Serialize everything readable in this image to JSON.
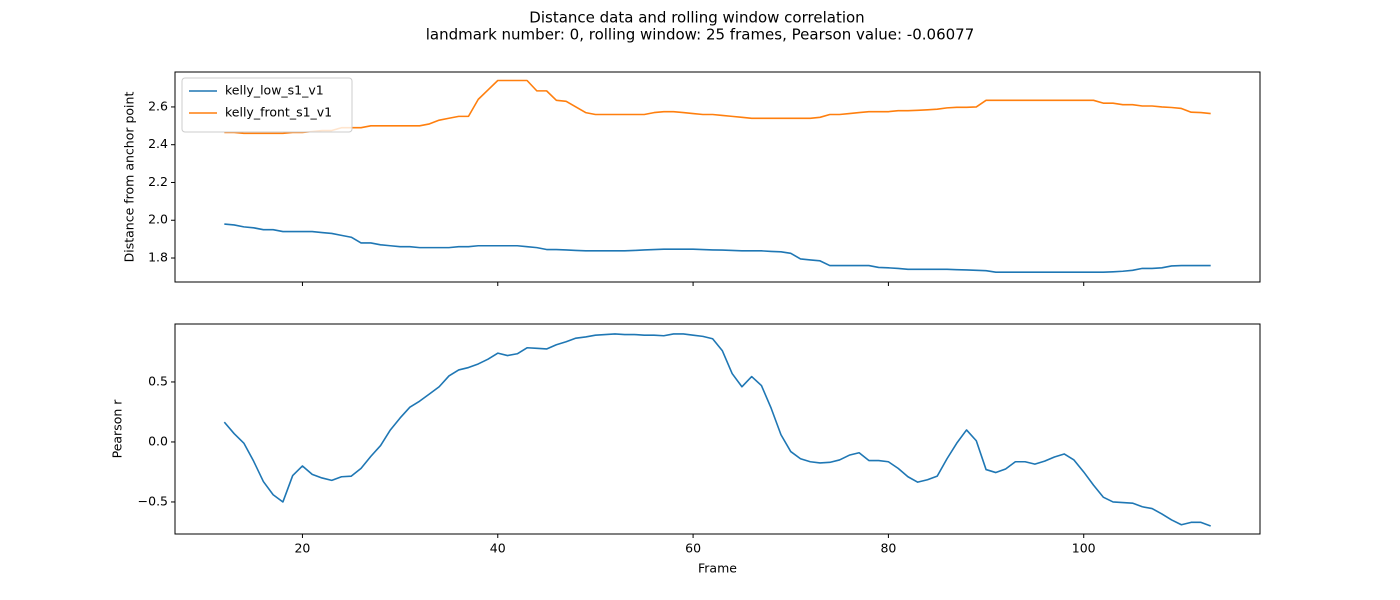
{
  "title": "Distance data and rolling window correlation",
  "subtitle": "landmark number: 0, rolling window: 25 frames, Pearson value: -0.06077",
  "chart_data": [
    {
      "type": "line",
      "ylabel": "Distance from anchor point",
      "xtick_labels": false,
      "legend": "upper left",
      "grid": false,
      "xlim": [
        6.95,
        118.05
      ],
      "xticks": [
        20,
        40,
        60,
        80,
        100
      ],
      "ylim": [
        1.673,
        2.785
      ],
      "yticks": [
        1.8,
        {
          "value": 2,
          "label": "2.0"
        },
        2.2,
        2.4,
        2.6
      ],
      "x": [
        12,
        13,
        14,
        15,
        16,
        17,
        18,
        19,
        20,
        21,
        22,
        23,
        24,
        25,
        26,
        27,
        28,
        29,
        30,
        31,
        32,
        33,
        34,
        35,
        36,
        37,
        38,
        39,
        40,
        41,
        42,
        43,
        44,
        45,
        46,
        47,
        48,
        49,
        50,
        51,
        52,
        53,
        54,
        55,
        56,
        57,
        58,
        59,
        60,
        61,
        62,
        63,
        64,
        65,
        66,
        67,
        68,
        69,
        70,
        71,
        72,
        73,
        74,
        75,
        76,
        77,
        78,
        79,
        80,
        81,
        82,
        83,
        84,
        85,
        86,
        87,
        88,
        89,
        90,
        91,
        92,
        93,
        94,
        95,
        96,
        97,
        98,
        99,
        100,
        101,
        102,
        103,
        104,
        105,
        106,
        107,
        108,
        109,
        110,
        111,
        112,
        113
      ],
      "series": [
        {
          "name": "kelly_low_s1_v1",
          "color": "#1f77b4",
          "values": [
            1.98,
            1.975,
            1.965,
            1.96,
            1.95,
            1.95,
            1.94,
            1.94,
            1.94,
            1.94,
            1.935,
            1.93,
            1.92,
            1.91,
            1.88,
            1.88,
            1.87,
            1.865,
            1.86,
            1.86,
            1.855,
            1.855,
            1.855,
            1.855,
            1.86,
            1.86,
            1.865,
            1.865,
            1.865,
            1.865,
            1.865,
            1.86,
            1.855,
            1.845,
            1.845,
            1.843,
            1.84,
            1.838,
            1.838,
            1.838,
            1.838,
            1.838,
            1.84,
            1.843,
            1.845,
            1.847,
            1.847,
            1.847,
            1.847,
            1.845,
            1.843,
            1.842,
            1.84,
            1.838,
            1.838,
            1.838,
            1.835,
            1.833,
            1.825,
            1.795,
            1.79,
            1.785,
            1.76,
            1.76,
            1.76,
            1.76,
            1.76,
            1.75,
            1.748,
            1.745,
            1.74,
            1.74,
            1.74,
            1.74,
            1.74,
            1.738,
            1.737,
            1.735,
            1.733,
            1.725,
            1.725,
            1.725,
            1.725,
            1.725,
            1.725,
            1.725,
            1.725,
            1.725,
            1.725,
            1.725,
            1.725,
            1.727,
            1.73,
            1.735,
            1.745,
            1.745,
            1.748,
            1.758,
            1.76,
            1.76,
            1.76,
            1.76
          ]
        },
        {
          "name": "kelly_front_s1_v1",
          "color": "#ff7f0e",
          "values": [
            2.465,
            2.465,
            2.46,
            2.46,
            2.46,
            2.46,
            2.46,
            2.465,
            2.465,
            2.47,
            2.475,
            2.475,
            2.49,
            2.49,
            2.49,
            2.5,
            2.5,
            2.5,
            2.5,
            2.5,
            2.5,
            2.51,
            2.53,
            2.54,
            2.55,
            2.55,
            2.64,
            2.69,
            2.74,
            2.74,
            2.74,
            2.74,
            2.685,
            2.685,
            2.635,
            2.63,
            2.6,
            2.57,
            2.56,
            2.56,
            2.56,
            2.56,
            2.56,
            2.56,
            2.57,
            2.575,
            2.575,
            2.57,
            2.565,
            2.56,
            2.56,
            2.555,
            2.55,
            2.545,
            2.54,
            2.54,
            2.54,
            2.54,
            2.54,
            2.54,
            2.54,
            2.545,
            2.56,
            2.56,
            2.565,
            2.57,
            2.575,
            2.575,
            2.575,
            2.58,
            2.58,
            2.582,
            2.585,
            2.588,
            2.595,
            2.598,
            2.598,
            2.6,
            2.635,
            2.635,
            2.635,
            2.635,
            2.635,
            2.635,
            2.635,
            2.635,
            2.635,
            2.635,
            2.635,
            2.635,
            2.62,
            2.62,
            2.612,
            2.612,
            2.605,
            2.605,
            2.6,
            2.597,
            2.592,
            2.572,
            2.57,
            2.565
          ]
        }
      ]
    },
    {
      "type": "line",
      "ylabel": "Pearson r",
      "xlabel": "Frame",
      "xtick_labels": true,
      "grid": false,
      "xlim": [
        6.95,
        118.05
      ],
      "xticks": [
        20,
        40,
        60,
        80,
        100
      ],
      "ylim": [
        -0.767,
        0.983
      ],
      "yticks": [
        {
          "value": -0.5,
          "label": "−0.5"
        },
        {
          "value": 0,
          "label": "0.0"
        },
        0.5
      ],
      "x": [
        12,
        13,
        14,
        15,
        16,
        17,
        18,
        19,
        20,
        21,
        22,
        23,
        24,
        25,
        26,
        27,
        28,
        29,
        30,
        31,
        32,
        33,
        34,
        35,
        36,
        37,
        38,
        39,
        40,
        41,
        42,
        43,
        44,
        45,
        46,
        47,
        48,
        49,
        50,
        51,
        52,
        53,
        54,
        55,
        56,
        57,
        58,
        59,
        60,
        61,
        62,
        63,
        64,
        65,
        66,
        67,
        68,
        69,
        70,
        71,
        72,
        73,
        74,
        75,
        76,
        77,
        78,
        79,
        80,
        81,
        82,
        83,
        84,
        85,
        86,
        87,
        88,
        89,
        90,
        91,
        92,
        93,
        94,
        95,
        96,
        97,
        98,
        99,
        100,
        101,
        102,
        103,
        104,
        105,
        106,
        107,
        108,
        109,
        110,
        111,
        112,
        113
      ],
      "series": [
        {
          "color": "#1f77b4",
          "values": [
            0.165,
            0.07,
            -0.01,
            -0.16,
            -0.33,
            -0.44,
            -0.5,
            -0.28,
            -0.2,
            -0.27,
            -0.3,
            -0.32,
            -0.29,
            -0.285,
            -0.22,
            -0.12,
            -0.03,
            0.1,
            0.2,
            0.29,
            0.34,
            0.4,
            0.46,
            0.55,
            0.6,
            0.62,
            0.65,
            0.69,
            0.74,
            0.72,
            0.735,
            0.785,
            0.78,
            0.775,
            0.81,
            0.835,
            0.865,
            0.875,
            0.89,
            0.895,
            0.9,
            0.895,
            0.895,
            0.89,
            0.89,
            0.885,
            0.9,
            0.9,
            0.89,
            0.88,
            0.86,
            0.76,
            0.57,
            0.46,
            0.545,
            0.47,
            0.28,
            0.06,
            -0.08,
            -0.14,
            -0.165,
            -0.175,
            -0.17,
            -0.15,
            -0.11,
            -0.09,
            -0.155,
            -0.155,
            -0.165,
            -0.22,
            -0.29,
            -0.335,
            -0.315,
            -0.285,
            -0.14,
            -0.01,
            0.1,
            0.01,
            -0.23,
            -0.255,
            -0.225,
            -0.165,
            -0.165,
            -0.185,
            -0.16,
            -0.125,
            -0.1,
            -0.15,
            -0.25,
            -0.36,
            -0.46,
            -0.5,
            -0.505,
            -0.51,
            -0.54,
            -0.555,
            -0.6,
            -0.65,
            -0.69,
            -0.67,
            -0.67,
            -0.7
          ]
        }
      ]
    }
  ]
}
